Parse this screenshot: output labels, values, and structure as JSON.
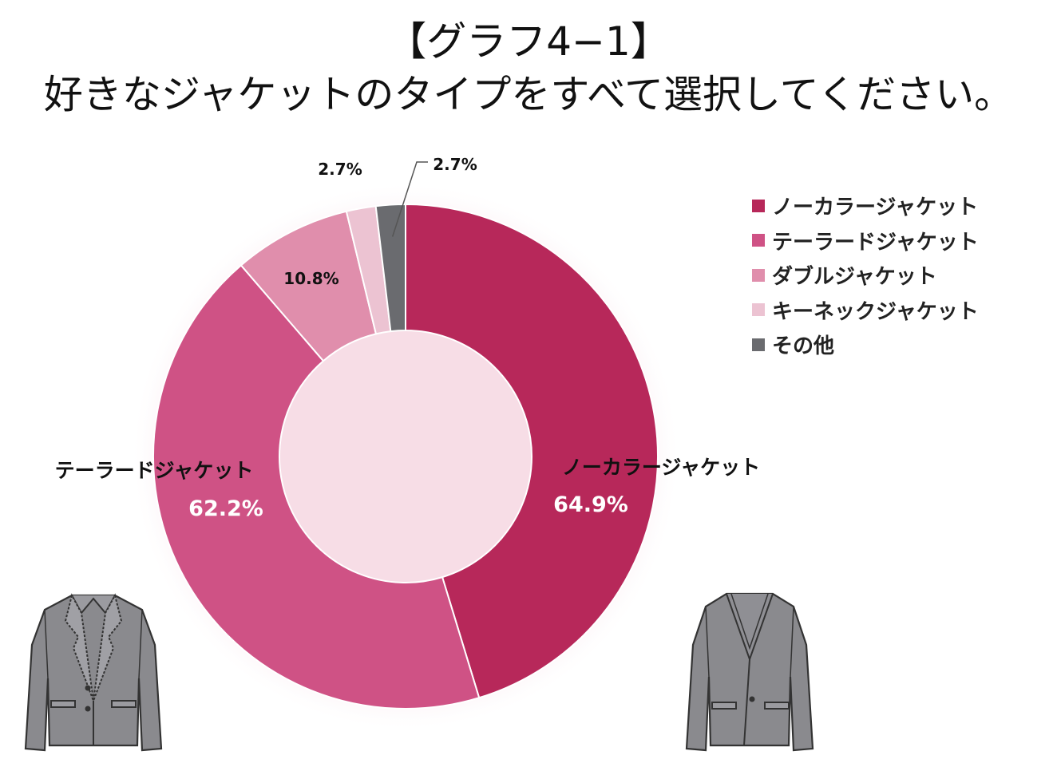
{
  "title": {
    "line1": "【グラフ4−1】",
    "line2": "好きなジャケットのタイプをすべて選択してください。"
  },
  "chart_data": {
    "type": "pie",
    "donut": true,
    "title": "【グラフ4−1】好きなジャケットのタイプをすべて選択してください。",
    "unit": "%",
    "legend_position": "top-right",
    "slices": [
      {
        "label": "ノーカラージャケット",
        "value": 64.9,
        "value_label": "64.9%",
        "color": "#b7285a"
      },
      {
        "label": "テーラードジャケット",
        "value": 62.2,
        "value_label": "62.2%",
        "color": "#cf5285"
      },
      {
        "label": "ダブルジャケット",
        "value": 10.8,
        "value_label": "10.8%",
        "color": "#e08eac"
      },
      {
        "label": "キーネックジャケット",
        "value": 2.7,
        "value_label": "2.7%",
        "color": "#ecc3d2"
      },
      {
        "label": "その他",
        "value": 2.7,
        "value_label": "2.7%",
        "color": "#6a6b6f"
      }
    ]
  },
  "legend": {
    "items": [
      {
        "label": "ノーカラージャケット",
        "color": "#b7285a"
      },
      {
        "label": "テーラードジャケット",
        "color": "#cf5285"
      },
      {
        "label": "ダブルジャケット",
        "color": "#e08eac"
      },
      {
        "label": "キーネックジャケット",
        "color": "#ecc3d2"
      },
      {
        "label": "その他",
        "color": "#6a6b6f"
      }
    ]
  },
  "icons": {
    "left": "tailored-jacket-icon",
    "right": "collarless-jacket-icon"
  }
}
